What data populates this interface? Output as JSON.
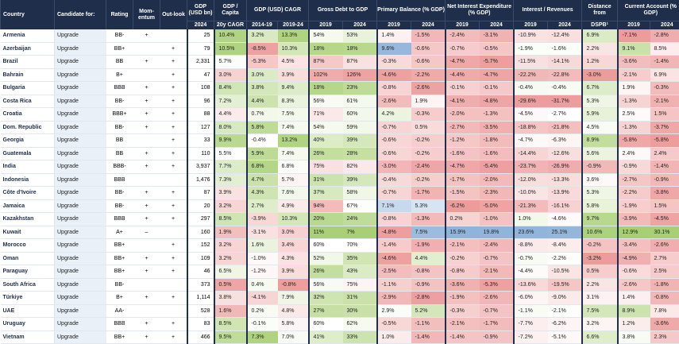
{
  "headers": {
    "country": "Country",
    "candidate": "Candidate for:",
    "rating": "Rating",
    "momentum": "Mom-entum",
    "outlook": "Out-look",
    "gdp": "GDP (USD bn)",
    "gdp_pc": "GDP / Capita",
    "gdp_cagr": "GDP (USD) CAGR",
    "debt": "Gross Debt to GDP",
    "primary": "Primary Balance (% GDP)",
    "interest_exp": "Net Interest Expenditure (% GDP)",
    "interest_rev": "Interest / Revenues",
    "distance": "Distance from",
    "current": "Current Account (% GDP)"
  },
  "subheaders": [
    "2024",
    "20y CAGR",
    "2014-19",
    "2019-24",
    "2019",
    "2024",
    "2019",
    "2024",
    "2019",
    "2024",
    "2019",
    "2024",
    "DSPB¹",
    "2019",
    "2024"
  ],
  "rows": [
    {
      "country": "Armenia",
      "candidate": "Upgrade",
      "rating": "BB-",
      "mom": "+",
      "out": "",
      "gdp": "25",
      "pc": "10.4%",
      "c1": "3.2%",
      "c2": "13.3%",
      "d19": "54%",
      "d24": "53%",
      "p19": "1.4%",
      "p24": "-1.5%",
      "i19": "-2.4%",
      "i24": "-3.1%",
      "r19": "-10.9%",
      "r24": "-12.4%",
      "dist": "6.9%",
      "ca19": "-7.1%",
      "ca24": "-2.8%"
    },
    {
      "country": "Azerbaijan",
      "candidate": "Upgrade",
      "rating": "BB+",
      "mom": "",
      "out": "+",
      "gdp": "79",
      "pc": "10.5%",
      "c1": "-8.5%",
      "c2": "10.3%",
      "d19": "18%",
      "d24": "18%",
      "p19": "9.6%",
      "p24": "-0.6%",
      "i19": "-0.7%",
      "i24": "-0.5%",
      "r19": "-1.9%",
      "r24": "-1.6%",
      "dist": "2.2%",
      "ca19": "9.1%",
      "ca24": "8.5%"
    },
    {
      "country": "Brazil",
      "candidate": "Upgrade",
      "rating": "BB",
      "mom": "+",
      "out": "+",
      "gdp": "2,331",
      "pc": "5.7%",
      "c1": "-5.3%",
      "c2": "4.5%",
      "d19": "87%",
      "d24": "87%",
      "p19": "-0.3%",
      "p24": "-0.6%",
      "i19": "-4.7%",
      "i24": "-5.7%",
      "r19": "-11.5%",
      "r24": "-14.1%",
      "dist": "1.2%",
      "ca19": "-3.6%",
      "ca24": "-1.4%"
    },
    {
      "country": "Bahrain",
      "candidate": "Upgrade",
      "rating": "B+",
      "mom": "",
      "out": "+",
      "gdp": "47",
      "pc": "3.0%",
      "c1": "3.0%",
      "c2": "3.9%",
      "d19": "102%",
      "d24": "126%",
      "p19": "-4.6%",
      "p24": "-2.2%",
      "i19": "-4.4%",
      "i24": "-4.7%",
      "r19": "-22.2%",
      "r24": "-22.8%",
      "dist": "-3.0%",
      "ca19": "-2.1%",
      "ca24": "6.9%"
    },
    {
      "country": "Bulgaria",
      "candidate": "Upgrade",
      "rating": "BBB",
      "mom": "+",
      "out": "+",
      "gdp": "108",
      "pc": "8.4%",
      "c1": "3.8%",
      "c2": "9.4%",
      "d19": "18%",
      "d24": "23%",
      "p19": "-0.8%",
      "p24": "-2.6%",
      "i19": "-0.1%",
      "i24": "-0.1%",
      "r19": "-0.4%",
      "r24": "-0.4%",
      "dist": "6.7%",
      "ca19": "1.9%",
      "ca24": "-0.3%"
    },
    {
      "country": "Costa Rica",
      "candidate": "Upgrade",
      "rating": "BB-",
      "mom": "+",
      "out": "+",
      "gdp": "96",
      "pc": "7.2%",
      "c1": "4.4%",
      "c2": "8.3%",
      "d19": "56%",
      "d24": "61%",
      "p19": "-2.6%",
      "p24": "1.9%",
      "i19": "-4.1%",
      "i24": "-4.8%",
      "r19": "-29.6%",
      "r24": "-31.7%",
      "dist": "5.3%",
      "ca19": "-1.3%",
      "ca24": "-2.1%"
    },
    {
      "country": "Croatia",
      "candidate": "Upgrade",
      "rating": "BBB+",
      "mom": "+",
      "out": "+",
      "gdp": "88",
      "pc": "4.4%",
      "c1": "0.7%",
      "c2": "7.5%",
      "d19": "71%",
      "d24": "60%",
      "p19": "4.2%",
      "p24": "-0.3%",
      "i19": "-2.0%",
      "i24": "-1.3%",
      "r19": "-4.5%",
      "r24": "-2.7%",
      "dist": "5.9%",
      "ca19": "2.5%",
      "ca24": "1.5%"
    },
    {
      "country": "Dom. Republic",
      "candidate": "Upgrade",
      "rating": "BB-",
      "mom": "+",
      "out": "+",
      "gdp": "127",
      "pc": "8.0%",
      "c1": "5.8%",
      "c2": "7.4%",
      "d19": "54%",
      "d24": "59%",
      "p19": "-0.7%",
      "p24": "0.5%",
      "i19": "-2.7%",
      "i24": "-3.5%",
      "r19": "-18.8%",
      "r24": "-21.8%",
      "dist": "4.5%",
      "ca19": "-1.3%",
      "ca24": "-3.7%"
    },
    {
      "country": "Georgia",
      "candidate": "Upgrade",
      "rating": "BB",
      "mom": "",
      "out": "+",
      "gdp": "33",
      "pc": "9.9%",
      "c1": "-0.4%",
      "c2": "13.2%",
      "d19": "40%",
      "d24": "39%",
      "p19": "-0.6%",
      "p24": "-0.2%",
      "i19": "-1.2%",
      "i24": "-1.8%",
      "r19": "-4.7%",
      "r24": "-6.3%",
      "dist": "8.9%",
      "ca19": "-5.8%",
      "ca24": "-5.8%"
    },
    {
      "country": "Guatemala",
      "candidate": "Upgrade",
      "rating": "BB",
      "mom": "+",
      "out": "+",
      "gdp": "110",
      "pc": "5.5%",
      "c1": "5.9%",
      "c2": "7.4%",
      "d19": "26%",
      "d24": "28%",
      "p19": "-0.6%",
      "p24": "-0.2%",
      "i19": "-1.6%",
      "i24": "-1.6%",
      "r19": "-14.4%",
      "r24": "-12.6%",
      "dist": "5.6%",
      "ca19": "2.4%",
      "ca24": "2.4%"
    },
    {
      "country": "India",
      "candidate": "Upgrade",
      "rating": "BBB-",
      "mom": "+",
      "out": "+",
      "gdp": "3,937",
      "pc": "7.7%",
      "c1": "6.8%",
      "c2": "6.8%",
      "d19": "75%",
      "d24": "82%",
      "p19": "-3.0%",
      "p24": "-2.4%",
      "i19": "-4.7%",
      "i24": "-5.4%",
      "r19": "-23.7%",
      "r24": "-26.9%",
      "dist": "-0.9%",
      "ca19": "-0.9%",
      "ca24": "-1.4%"
    },
    {
      "country": "Indonesia",
      "candidate": "Upgrade",
      "rating": "BBB",
      "mom": "",
      "out": "",
      "gdp": "1,476",
      "pc": "7.3%",
      "c1": "4.7%",
      "c2": "5.7%",
      "d19": "31%",
      "d24": "39%",
      "p19": "-0.4%",
      "p24": "-0.2%",
      "i19": "-1.7%",
      "i24": "-2.0%",
      "r19": "-12.0%",
      "r24": "-13.3%",
      "dist": "3.6%",
      "ca19": "-2.7%",
      "ca24": "-0.9%"
    },
    {
      "country": "Côte d'Ivoire",
      "candidate": "Upgrade",
      "rating": "BB-",
      "mom": "+",
      "out": "+",
      "gdp": "87",
      "pc": "3.9%",
      "c1": "4.3%",
      "c2": "7.6%",
      "d19": "37%",
      "d24": "58%",
      "p19": "-0.7%",
      "p24": "-1.7%",
      "i19": "-1.5%",
      "i24": "-2.3%",
      "r19": "-10.0%",
      "r24": "-13.9%",
      "dist": "5.3%",
      "ca19": "-2.2%",
      "ca24": "-3.8%"
    },
    {
      "country": "Jamaica",
      "candidate": "Upgrade",
      "rating": "BB-",
      "mom": "+",
      "out": "+",
      "gdp": "20",
      "pc": "3.2%",
      "c1": "2.7%",
      "c2": "4.9%",
      "d19": "94%",
      "d24": "67%",
      "p19": "7.1%",
      "p24": "5.3%",
      "i19": "-6.2%",
      "i24": "-5.0%",
      "r19": "-21.3%",
      "r24": "-16.1%",
      "dist": "5.8%",
      "ca19": "-1.9%",
      "ca24": "1.5%"
    },
    {
      "country": "Kazakhstan",
      "candidate": "Upgrade",
      "rating": "BBB",
      "mom": "+",
      "out": "+",
      "gdp": "297",
      "pc": "8.5%",
      "c1": "-3.9%",
      "c2": "10.3%",
      "d19": "20%",
      "d24": "24%",
      "p19": "-0.8%",
      "p24": "-1.3%",
      "i19": "0.2%",
      "i24": "-1.0%",
      "r19": "1.0%",
      "r24": "-4.6%",
      "dist": "9.7%",
      "ca19": "-3.9%",
      "ca24": "-4.5%"
    },
    {
      "country": "Kuwait",
      "candidate": "Upgrade",
      "rating": "A+",
      "mom": "–",
      "out": "",
      "gdp": "160",
      "pc": "1.9%",
      "c1": "-3.1%",
      "c2": "3.0%",
      "d19": "11%",
      "d24": "7%",
      "p19": "-4.8%",
      "p24": "7.5%",
      "i19": "15.9%",
      "i24": "19.8%",
      "r19": "23.6%",
      "r24": "25.1%",
      "dist": "10.6%",
      "ca19": "12.9%",
      "ca24": "30.1%"
    },
    {
      "country": "Morocco",
      "candidate": "Upgrade",
      "rating": "BB+",
      "mom": "",
      "out": "+",
      "gdp": "152",
      "pc": "3.2%",
      "c1": "1.6%",
      "c2": "3.4%",
      "d19": "60%",
      "d24": "70%",
      "p19": "-1.4%",
      "p24": "-1.9%",
      "i19": "-2.1%",
      "i24": "-2.4%",
      "r19": "-8.8%",
      "r24": "-8.4%",
      "dist": "-0.2%",
      "ca19": "-3.4%",
      "ca24": "-2.6%"
    },
    {
      "country": "Oman",
      "candidate": "Upgrade",
      "rating": "BB+",
      "mom": "+",
      "out": "+",
      "gdp": "109",
      "pc": "3.2%",
      "c1": "-1.0%",
      "c2": "4.3%",
      "d19": "52%",
      "d24": "35%",
      "p19": "-4.6%",
      "p24": "4.4%",
      "i19": "-0.2%",
      "i24": "-0.7%",
      "r19": "-0.7%",
      "r24": "-2.2%",
      "dist": "-3.2%",
      "ca19": "-4.9%",
      "ca24": "2.7%"
    },
    {
      "country": "Paraguay",
      "candidate": "Upgrade",
      "rating": "BB+",
      "mom": "+",
      "out": "+",
      "gdp": "46",
      "pc": "6.5%",
      "c1": "-1.2%",
      "c2": "3.9%",
      "d19": "26%",
      "d24": "43%",
      "p19": "-2.5%",
      "p24": "-0.8%",
      "i19": "-0.8%",
      "i24": "-2.1%",
      "r19": "-4.4%",
      "r24": "-10.5%",
      "dist": "0.5%",
      "ca19": "-0.6%",
      "ca24": "2.5%"
    },
    {
      "country": "South Africa",
      "candidate": "Upgrade",
      "rating": "BB-",
      "mom": "",
      "out": "",
      "gdp": "373",
      "pc": "0.5%",
      "c1": "0.4%",
      "c2": "-0.8%",
      "d19": "56%",
      "d24": "75%",
      "p19": "-1.1%",
      "p24": "-0.9%",
      "i19": "-3.6%",
      "i24": "-5.3%",
      "r19": "-13.6%",
      "r24": "-19.5%",
      "dist": "2.2%",
      "ca19": "-2.6%",
      "ca24": "-1.8%"
    },
    {
      "country": "Türkiye",
      "candidate": "Upgrade",
      "rating": "B+",
      "mom": "+",
      "out": "+",
      "gdp": "1,114",
      "pc": "3.8%",
      "c1": "-4.1%",
      "c2": "7.9%",
      "d19": "32%",
      "d24": "31%",
      "p19": "-2.9%",
      "p24": "-2.8%",
      "i19": "-1.9%",
      "i24": "-2.6%",
      "r19": "-6.0%",
      "r24": "-9.0%",
      "dist": "3.1%",
      "ca19": "1.4%",
      "ca24": "-0.8%"
    },
    {
      "country": "UAE",
      "candidate": "Upgrade",
      "rating": "AA-",
      "mom": "",
      "out": "",
      "gdp": "528",
      "pc": "1.6%",
      "c1": "0.2%",
      "c2": "4.8%",
      "d19": "27%",
      "d24": "30%",
      "p19": "2.9%",
      "p24": "5.2%",
      "i19": "-0.3%",
      "i24": "-0.7%",
      "r19": "-1.1%",
      "r24": "-2.1%",
      "dist": "7.5%",
      "ca19": "8.9%",
      "ca24": "7.8%"
    },
    {
      "country": "Uruguay",
      "candidate": "Upgrade",
      "rating": "BBB",
      "mom": "+",
      "out": "+",
      "gdp": "83",
      "pc": "8.5%",
      "c1": "-0.1%",
      "c2": "5.8%",
      "d19": "60%",
      "d24": "62%",
      "p19": "-0.5%",
      "p24": "-1.1%",
      "i19": "-2.1%",
      "i24": "-1.7%",
      "r19": "-7.7%",
      "r24": "-6.2%",
      "dist": "3.2%",
      "ca19": "1.2%",
      "ca24": "-3.6%"
    },
    {
      "country": "Vietnam",
      "candidate": "Upgrade",
      "rating": "BB+",
      "mom": "+",
      "out": "+",
      "gdp": "466",
      "pc": "9.5%",
      "c1": "7.3%",
      "c2": "7.0%",
      "d19": "41%",
      "d24": "33%",
      "p19": "1.0%",
      "p24": "-1.4%",
      "i19": "-1.4%",
      "i24": "-0.9%",
      "r19": "-7.2%",
      "r24": "-5.1%",
      "dist": "6.6%",
      "ca19": "3.8%",
      "ca24": "2.3%"
    }
  ],
  "colors": {
    "header_bg": "#1f2e4a",
    "scale_red_strong": "#ea8a8a",
    "scale_red_light": "#f8dcdc",
    "scale_green_strong": "#a8cf74",
    "scale_green_light": "#e3efce",
    "scale_blue_strong": "#8fb3d9",
    "scale_blue_light": "#d8e6f3",
    "candidate_bg": "#e9f0f8"
  }
}
